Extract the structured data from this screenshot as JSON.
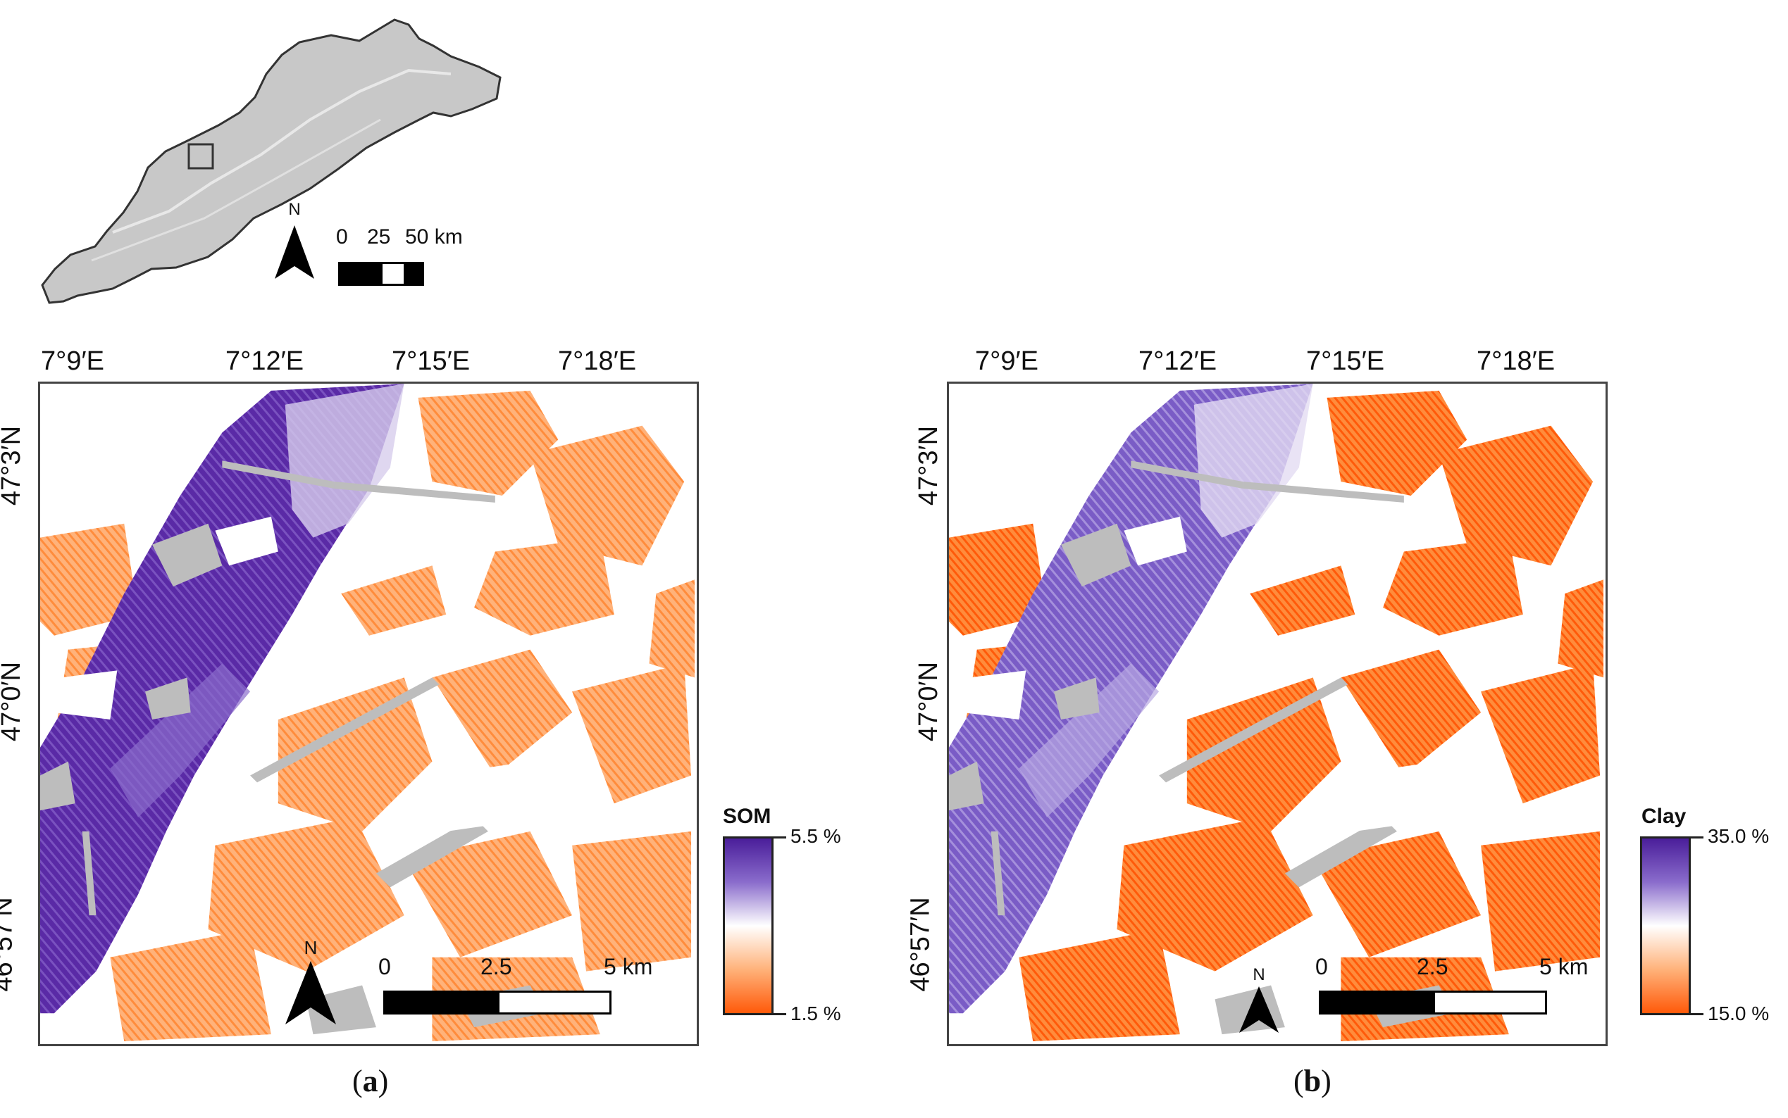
{
  "inset": {
    "north_label": "N",
    "scale_ticks": [
      "0",
      "25",
      "50 km"
    ]
  },
  "panel_a": {
    "caption_letter": "a",
    "lon_labels": [
      "7°9′E",
      "7°12′E",
      "7°15′E",
      "7°18′E"
    ],
    "lat_labels": [
      "47°3′N",
      "47°0′N",
      "46°57′N"
    ],
    "legend": {
      "title": "SOM",
      "max_label": "5.5 %",
      "min_label": "1.5 %"
    },
    "north_label": "N",
    "scale_ticks": [
      "0",
      "2.5",
      "5 km"
    ]
  },
  "panel_b": {
    "caption_letter": "b",
    "lon_labels": [
      "7°9′E",
      "7°12′E",
      "7°15′E",
      "7°18′E"
    ],
    "lat_labels": [
      "47°3′N",
      "47°0′N",
      "46°57′N"
    ],
    "legend": {
      "title": "Clay",
      "max_label": "35.0 %",
      "min_label": "15.0 %"
    },
    "north_label": "N",
    "scale_ticks": [
      "0",
      "2.5",
      "5 km"
    ]
  },
  "colors": {
    "high": "#4a1e9a",
    "mid": "#ffffff",
    "low": "#ff5a0a",
    "masked": "#bdbdbd",
    "inset_fill": "#c8c8c8"
  }
}
